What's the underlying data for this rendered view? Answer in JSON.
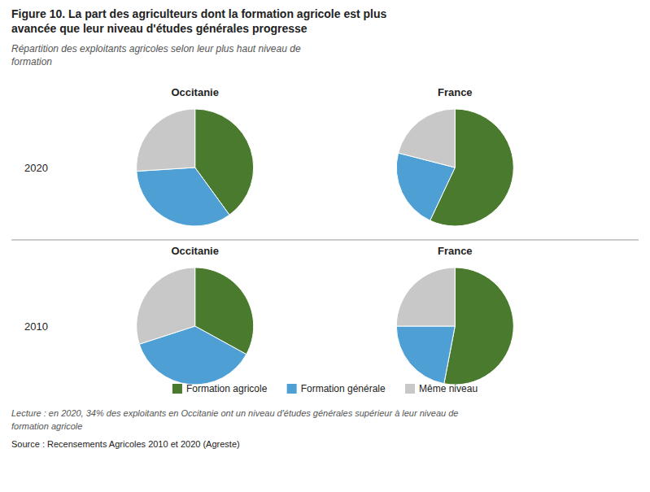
{
  "chart_data": {
    "type": "pie",
    "title": [
      "Figure 10.  La part des agriculteurs dont la formation agricole est plus",
      "avancée que leur niveau d'études générales progresse"
    ],
    "subtitle": [
      "Répartition des exploitants agricoles selon leur plus haut niveau de",
      "formation"
    ],
    "categories": [
      "Formation agricole",
      "Formation générale",
      "Même niveau"
    ],
    "colors": [
      "#4a7a2e",
      "#4e9fd4",
      "#c8c8c8"
    ],
    "rows": [
      {
        "label": "2020",
        "series": [
          {
            "name": "Occitanie",
            "values": [
              40,
              34,
              26
            ]
          },
          {
            "name": "France",
            "values": [
              57,
              22,
              21
            ]
          }
        ]
      },
      {
        "label": "2010",
        "series": [
          {
            "name": "Occitanie",
            "values": [
              33,
              37,
              30
            ]
          },
          {
            "name": "France",
            "values": [
              53,
              22,
              25
            ]
          }
        ]
      }
    ],
    "legend": "bottom",
    "annotations": [
      "Lecture : en 2020, 34% des exploitants en Occitanie ont un niveau d'études générales supérieur à leur niveau de",
      "formation agricole",
      "Source :  Recensements Agricoles 2010 et 2020 (Agreste)"
    ]
  }
}
